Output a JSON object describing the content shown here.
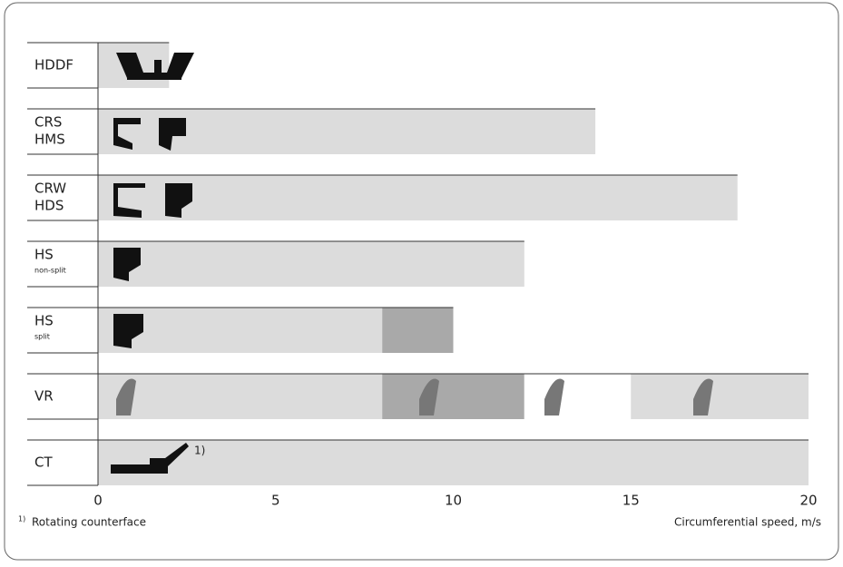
{
  "chart_data": {
    "type": "range-bar",
    "x_label": "Circumferential speed, m/s",
    "footnote": {
      "marker": "1)",
      "text": "Rotating counterface"
    },
    "xlim": [
      0,
      20
    ],
    "xticks": [
      0,
      5,
      10,
      15,
      20
    ],
    "rows": [
      {
        "label": "HDDF",
        "segments": [
          {
            "from": 0,
            "to": 2,
            "color": "#dcdcdc"
          }
        ]
      },
      {
        "label": "CRS",
        "label2": "HMS",
        "segments": [
          {
            "from": 0,
            "to": 14,
            "color": "#dcdcdc"
          }
        ]
      },
      {
        "label": "CRW",
        "label2": "HDS",
        "segments": [
          {
            "from": 0,
            "to": 18,
            "color": "#dcdcdc"
          }
        ]
      },
      {
        "label": "HS",
        "note": "non-split",
        "segments": [
          {
            "from": 0,
            "to": 12,
            "color": "#dcdcdc"
          }
        ]
      },
      {
        "label": "HS",
        "note": "split",
        "segments": [
          {
            "from": 0,
            "to": 8,
            "color": "#dcdcdc"
          },
          {
            "from": 8,
            "to": 10,
            "color": "#a9a9a9"
          }
        ]
      },
      {
        "label": "VR",
        "segments": [
          {
            "from": 0,
            "to": 8,
            "color": "#dcdcdc"
          },
          {
            "from": 8,
            "to": 12,
            "color": "#a9a9a9"
          },
          {
            "from": 12,
            "to": 15,
            "color": "#ffffff"
          },
          {
            "from": 15,
            "to": 20,
            "color": "#dcdcdc"
          }
        ]
      },
      {
        "label": "CT",
        "marker": true,
        "segments": [
          {
            "from": 0,
            "to": 20,
            "color": "#dcdcdc"
          }
        ]
      }
    ]
  }
}
